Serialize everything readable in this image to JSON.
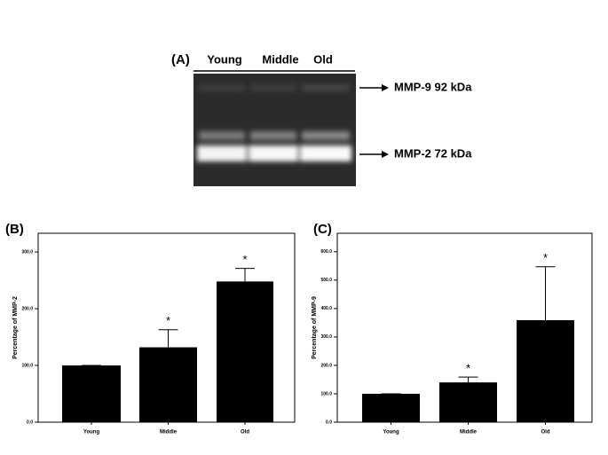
{
  "gel": {
    "panel_label": "(A)",
    "lanes": [
      "Young",
      "Middle",
      "Old"
    ],
    "bands": [
      "MMP-9 92 kDa",
      "MMP-2 72 kDa"
    ]
  },
  "chart_data": [
    {
      "type": "bar",
      "panel_label": "(B)",
      "y_label": "Percentage of MMP-2",
      "categories": [
        "Young",
        "Middle",
        "Old"
      ],
      "values": [
        100,
        132,
        248
      ],
      "errors": [
        0,
        31,
        23
      ],
      "color": "#000000",
      "ylim": [
        0,
        333
      ],
      "yticks": [
        {
          "value": 0,
          "label": "0.0"
        },
        {
          "value": 100,
          "label": "100.0"
        },
        {
          "value": 200,
          "label": "200.0"
        },
        {
          "value": 300,
          "label": "300.0"
        }
      ],
      "annotations": [
        null,
        "*",
        "*"
      ],
      "grid": false
    },
    {
      "type": "bar",
      "panel_label": "(C)",
      "y_label": "Percentage of MMP-9",
      "categories": [
        "Young",
        "Middle",
        "Old"
      ],
      "values": [
        100,
        140,
        359
      ],
      "errors": [
        0,
        19,
        188
      ],
      "color": "#000000",
      "ylim": [
        0,
        665
      ],
      "yticks": [
        {
          "value": 0,
          "label": "0.0"
        },
        {
          "value": 100,
          "label": "100.0"
        },
        {
          "value": 200,
          "label": "200.0"
        },
        {
          "value": 300,
          "label": "300.0"
        },
        {
          "value": 400,
          "label": "400.0"
        },
        {
          "value": 500,
          "label": "500.0"
        },
        {
          "value": 600,
          "label": "600.0"
        }
      ],
      "annotations": [
        null,
        "*",
        "*"
      ],
      "grid": false
    }
  ]
}
